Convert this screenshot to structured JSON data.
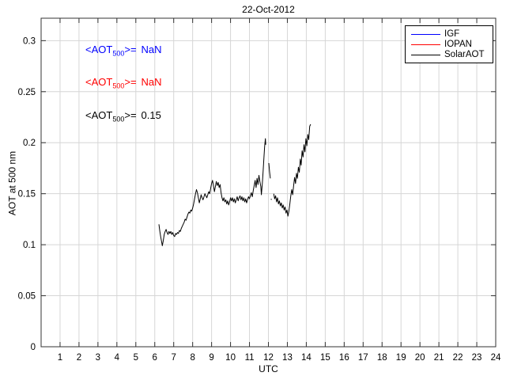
{
  "title": "22-Oct-2012",
  "colors": {
    "grid": "#d6d6d6",
    "axis": "#333333",
    "igf_blue": "#0000ff",
    "iopan_red": "#ff0000",
    "solar_black": "#000000"
  },
  "annotations": [
    {
      "prefix": "<AOT",
      "sub": "500",
      "mid": ">=",
      "value": "NaN",
      "color": "#0000ff"
    },
    {
      "prefix": "<AOT",
      "sub": "500",
      "mid": ">=",
      "value": "NaN",
      "color": "#ff0000"
    },
    {
      "prefix": "<AOT",
      "sub": "500",
      "mid": ">=",
      "value": "0.15",
      "color": "#000000"
    }
  ],
  "legend": {
    "items": [
      {
        "label": "IGF",
        "color": "#0000ff"
      },
      {
        "label": "IOPAN",
        "color": "#ff0000"
      },
      {
        "label": "SolarAOT",
        "color": "#000000"
      }
    ],
    "position": "top-right"
  },
  "axes": {
    "xlabel": "UTC",
    "ylabel": "AOT at 500 nm"
  },
  "chart_data": {
    "type": "line",
    "title": "22-Oct-2012",
    "xlabel": "UTC",
    "ylabel": "AOT at 500 nm",
    "xlim": [
      0,
      24
    ],
    "ylim": [
      0,
      0.322
    ],
    "grid": true,
    "legend_position": "top-right",
    "xticks": [
      {
        "v": 1,
        "label": "1"
      },
      {
        "v": 2,
        "label": "2"
      },
      {
        "v": 3,
        "label": "3"
      },
      {
        "v": 4,
        "label": "4"
      },
      {
        "v": 5,
        "label": "5"
      },
      {
        "v": 6,
        "label": "6"
      },
      {
        "v": 7,
        "label": "7"
      },
      {
        "v": 8,
        "label": "8"
      },
      {
        "v": 9,
        "label": "9"
      },
      {
        "v": 10,
        "label": "10"
      },
      {
        "v": 11,
        "label": "11"
      },
      {
        "v": 12,
        "label": "12"
      },
      {
        "v": 13,
        "label": "13"
      },
      {
        "v": 14,
        "label": "14"
      },
      {
        "v": 15,
        "label": "15"
      },
      {
        "v": 16,
        "label": "16"
      },
      {
        "v": 17,
        "label": "17"
      },
      {
        "v": 18,
        "label": "18"
      },
      {
        "v": 19,
        "label": "19"
      },
      {
        "v": 20,
        "label": "20"
      },
      {
        "v": 21,
        "label": "21"
      },
      {
        "v": 22,
        "label": "22"
      },
      {
        "v": 23,
        "label": "23"
      },
      {
        "v": 24,
        "label": "24"
      }
    ],
    "yticks": [
      {
        "v": 0,
        "label": "0"
      },
      {
        "v": 0.05,
        "label": "0.05"
      },
      {
        "v": 0.1,
        "label": "0.1"
      },
      {
        "v": 0.15,
        "label": "0.15"
      },
      {
        "v": 0.2,
        "label": "0.2"
      },
      {
        "v": 0.25,
        "label": "0.25"
      },
      {
        "v": 0.3,
        "label": "0.3"
      }
    ],
    "series": [
      {
        "name": "IGF",
        "color": "#0000ff",
        "mean_aot500": "NaN",
        "points": []
      },
      {
        "name": "IOPAN",
        "color": "#ff0000",
        "mean_aot500": "NaN",
        "points": []
      },
      {
        "name": "SolarAOT",
        "color": "#000000",
        "mean_aot500": 0.15,
        "points": [
          [
            6.22,
            0.12
          ],
          [
            6.27,
            0.113
          ],
          [
            6.31,
            0.108
          ],
          [
            6.36,
            0.103
          ],
          [
            6.4,
            0.099
          ],
          [
            6.45,
            0.104
          ],
          [
            6.5,
            0.11
          ],
          [
            6.55,
            0.113
          ],
          [
            6.6,
            0.115
          ],
          [
            6.65,
            0.112
          ],
          [
            6.7,
            0.11
          ],
          [
            6.75,
            0.113
          ],
          [
            6.8,
            0.111
          ],
          [
            6.85,
            0.113
          ],
          [
            6.9,
            0.11
          ],
          [
            6.95,
            0.112
          ],
          [
            7.0,
            0.109
          ],
          [
            7.05,
            0.108
          ],
          [
            7.1,
            0.111
          ],
          [
            7.15,
            0.11
          ],
          [
            7.2,
            0.112
          ],
          [
            7.25,
            0.111
          ],
          [
            7.3,
            0.114
          ],
          [
            7.35,
            0.113
          ],
          [
            7.4,
            0.116
          ],
          [
            7.45,
            0.118
          ],
          [
            7.5,
            0.12
          ],
          [
            7.55,
            0.122
          ],
          [
            7.6,
            0.125
          ],
          [
            7.65,
            0.124
          ],
          [
            7.7,
            0.127
          ],
          [
            7.75,
            0.13
          ],
          [
            7.8,
            0.132
          ],
          [
            7.85,
            0.131
          ],
          [
            7.9,
            0.134
          ],
          [
            7.95,
            0.133
          ],
          [
            8.0,
            0.136
          ],
          [
            8.05,
            0.14
          ],
          [
            8.1,
            0.145
          ],
          [
            8.15,
            0.15
          ],
          [
            8.2,
            0.154
          ],
          [
            8.25,
            0.151
          ],
          [
            8.3,
            0.146
          ],
          [
            8.35,
            0.141
          ],
          [
            8.4,
            0.145
          ],
          [
            8.45,
            0.149
          ],
          [
            8.5,
            0.146
          ],
          [
            8.55,
            0.144
          ],
          [
            8.6,
            0.147
          ],
          [
            8.65,
            0.15
          ],
          [
            8.7,
            0.148
          ],
          [
            8.75,
            0.146
          ],
          [
            8.8,
            0.149
          ],
          [
            8.85,
            0.152
          ],
          [
            8.9,
            0.15
          ],
          [
            8.95,
            0.155
          ],
          [
            9.0,
            0.16
          ],
          [
            9.05,
            0.163
          ],
          [
            9.1,
            0.158
          ],
          [
            9.15,
            0.152
          ],
          [
            9.2,
            0.157
          ],
          [
            9.25,
            0.162
          ],
          [
            9.3,
            0.158
          ],
          [
            9.35,
            0.161
          ],
          [
            9.4,
            0.156
          ],
          [
            9.45,
            0.159
          ],
          [
            9.5,
            0.151
          ],
          [
            9.55,
            0.146
          ],
          [
            9.6,
            0.143
          ],
          [
            9.65,
            0.146
          ],
          [
            9.7,
            0.142
          ],
          [
            9.75,
            0.144
          ],
          [
            9.8,
            0.14
          ],
          [
            9.85,
            0.143
          ],
          [
            9.9,
            0.139
          ],
          [
            9.95,
            0.142
          ],
          [
            10.0,
            0.146
          ],
          [
            10.05,
            0.143
          ],
          [
            10.1,
            0.146
          ],
          [
            10.15,
            0.142
          ],
          [
            10.2,
            0.145
          ],
          [
            10.25,
            0.141
          ],
          [
            10.3,
            0.144
          ],
          [
            10.35,
            0.147
          ],
          [
            10.4,
            0.143
          ],
          [
            10.45,
            0.146
          ],
          [
            10.5,
            0.148
          ],
          [
            10.55,
            0.144
          ],
          [
            10.6,
            0.147
          ],
          [
            10.65,
            0.143
          ],
          [
            10.7,
            0.146
          ],
          [
            10.75,
            0.142
          ],
          [
            10.8,
            0.145
          ],
          [
            10.85,
            0.141
          ],
          [
            10.9,
            0.144
          ],
          [
            10.95,
            0.147
          ],
          [
            11.0,
            0.145
          ],
          [
            11.05,
            0.148
          ],
          [
            11.1,
            0.151
          ],
          [
            11.15,
            0.147
          ],
          [
            11.2,
            0.153
          ],
          [
            11.25,
            0.158
          ],
          [
            11.3,
            0.163
          ],
          [
            11.35,
            0.156
          ],
          [
            11.4,
            0.165
          ],
          [
            11.45,
            0.159
          ],
          [
            11.5,
            0.168
          ],
          [
            11.55,
            0.162
          ],
          [
            11.6,
            0.157
          ],
          [
            11.63,
            0.149
          ],
          [
            11.68,
            0.16
          ],
          [
            11.72,
            0.172
          ],
          [
            11.76,
            0.185
          ],
          [
            11.8,
            0.196
          ],
          [
            11.84,
            0.204
          ],
          [
            11.86,
            0.198
          ],
          null,
          [
            12.02,
            0.18
          ],
          [
            12.06,
            0.172
          ],
          [
            12.1,
            0.165
          ],
          null,
          [
            12.14,
            0.145
          ],
          [
            12.16,
            0.144
          ],
          null,
          [
            12.28,
            0.15
          ],
          [
            12.33,
            0.145
          ],
          [
            12.38,
            0.148
          ],
          [
            12.43,
            0.142
          ],
          [
            12.48,
            0.146
          ],
          [
            12.53,
            0.14
          ],
          [
            12.58,
            0.143
          ],
          [
            12.63,
            0.138
          ],
          [
            12.68,
            0.141
          ],
          [
            12.73,
            0.136
          ],
          [
            12.78,
            0.139
          ],
          [
            12.83,
            0.134
          ],
          [
            12.88,
            0.137
          ],
          [
            12.93,
            0.131
          ],
          [
            12.98,
            0.134
          ],
          [
            13.03,
            0.128
          ],
          [
            13.08,
            0.133
          ],
          [
            13.13,
            0.14
          ],
          [
            13.18,
            0.148
          ],
          [
            13.23,
            0.154
          ],
          [
            13.28,
            0.149
          ],
          [
            13.33,
            0.158
          ],
          [
            13.38,
            0.166
          ],
          [
            13.43,
            0.16
          ],
          [
            13.48,
            0.17
          ],
          [
            13.53,
            0.165
          ],
          [
            13.58,
            0.176
          ],
          [
            13.63,
            0.171
          ],
          [
            13.68,
            0.184
          ],
          [
            13.73,
            0.178
          ],
          [
            13.78,
            0.192
          ],
          [
            13.83,
            0.186
          ],
          [
            13.88,
            0.198
          ],
          [
            13.93,
            0.191
          ],
          [
            13.98,
            0.204
          ],
          [
            14.03,
            0.197
          ],
          [
            14.08,
            0.208
          ],
          [
            14.13,
            0.203
          ],
          [
            14.18,
            0.216
          ],
          [
            14.23,
            0.218
          ]
        ]
      }
    ]
  }
}
